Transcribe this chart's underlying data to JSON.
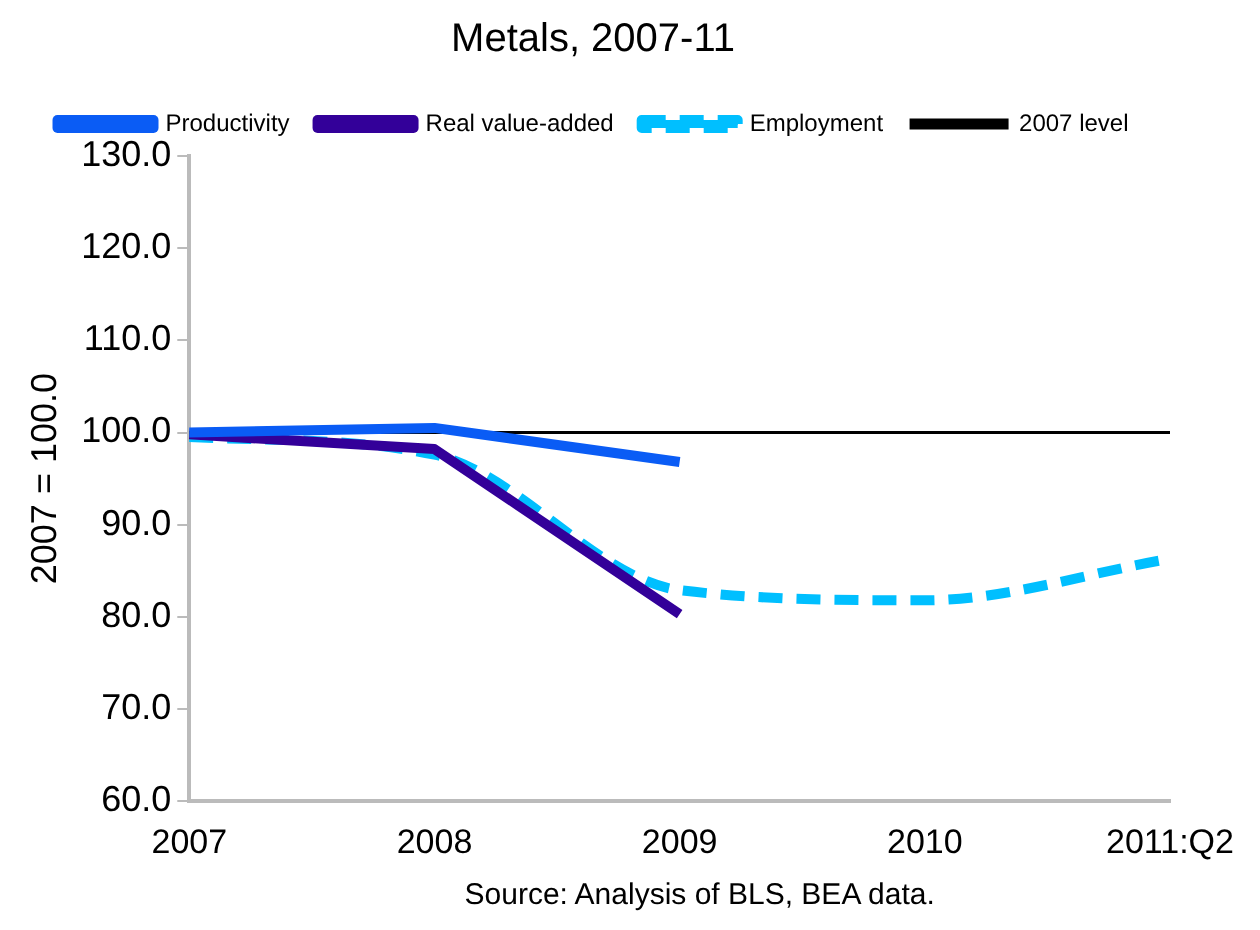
{
  "chart_data": {
    "type": "line",
    "title": "Metals, 2007-11",
    "ylabel": "2007 = 100.0",
    "categories": [
      "2007",
      "2008",
      "2009",
      "2010",
      "2011:Q2"
    ],
    "series": [
      {
        "name": "Productivity",
        "color": "#0a5cf5",
        "values": [
          100.0,
          100.5,
          96.8,
          null,
          null
        ]
      },
      {
        "name": "Real value-added",
        "color": "#330099",
        "values": [
          99.8,
          98.2,
          80.3,
          null,
          null
        ]
      },
      {
        "name": "Employment",
        "color": "#00bfff",
        "values": [
          99.5,
          97.6,
          82.9,
          81.8,
          86.3
        ],
        "line_style": "dashed"
      }
    ],
    "ref_lines": [
      {
        "axis": "y",
        "value": 100,
        "label": "2007 level",
        "color": "#000000"
      }
    ],
    "ylim": [
      60,
      130
    ],
    "yticks": [
      {
        "value": 60,
        "label": "60.0"
      },
      {
        "value": 70,
        "label": "70.0"
      },
      {
        "value": 80,
        "label": "80.0"
      },
      {
        "value": 90,
        "label": "90.0"
      },
      {
        "value": 100,
        "label": "100.0"
      },
      {
        "value": 110,
        "label": "110.0"
      },
      {
        "value": 120,
        "label": "120.0"
      },
      {
        "value": 130,
        "label": "130.0"
      }
    ],
    "grid": false,
    "legend": "top",
    "marker": "none",
    "line_style": "solid",
    "annotations": [
      "Source: Analysis of BLS, BEA data."
    ]
  }
}
